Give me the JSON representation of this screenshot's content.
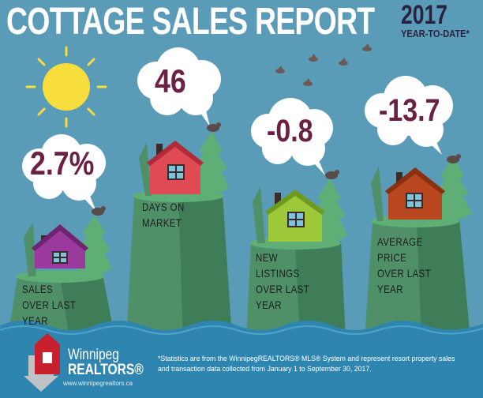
{
  "header": {
    "title": "COTTAGE SALES REPORT",
    "year": "2017",
    "subtitle": "YEAR-TO-DATE*"
  },
  "stats": [
    {
      "value": "2.7%",
      "label": "SALES OVER LAST YEAR",
      "house_color": "#9a3a9c"
    },
    {
      "value": "46",
      "label": "DAYS ON MARKET",
      "house_color": "#e04a55"
    },
    {
      "value": "-0.8",
      "label": "NEW LISTINGS OVER LAST YEAR",
      "house_color": "#9cc83a"
    },
    {
      "value": "-13.7",
      "label": "AVERAGE PRICE OVER LAST YEAR",
      "house_color": "#b8461e"
    }
  ],
  "branding": {
    "name_line1": "Winnipeg",
    "name_line2": "REALTORS®",
    "url": "www.winnipegrealtors.ca"
  },
  "footnote": "*Statistics are from the WinnipegREALTORS® MLS® System and represent resort property sales and transaction data collected from January 1 to September 30, 2017.",
  "colors": {
    "sky": "#5a9bb8",
    "water": "#2e86b0",
    "cliff": "#4f9068",
    "tree": "#5fae75",
    "sun": "#f7de3d",
    "stat_text": "#6b2044"
  }
}
